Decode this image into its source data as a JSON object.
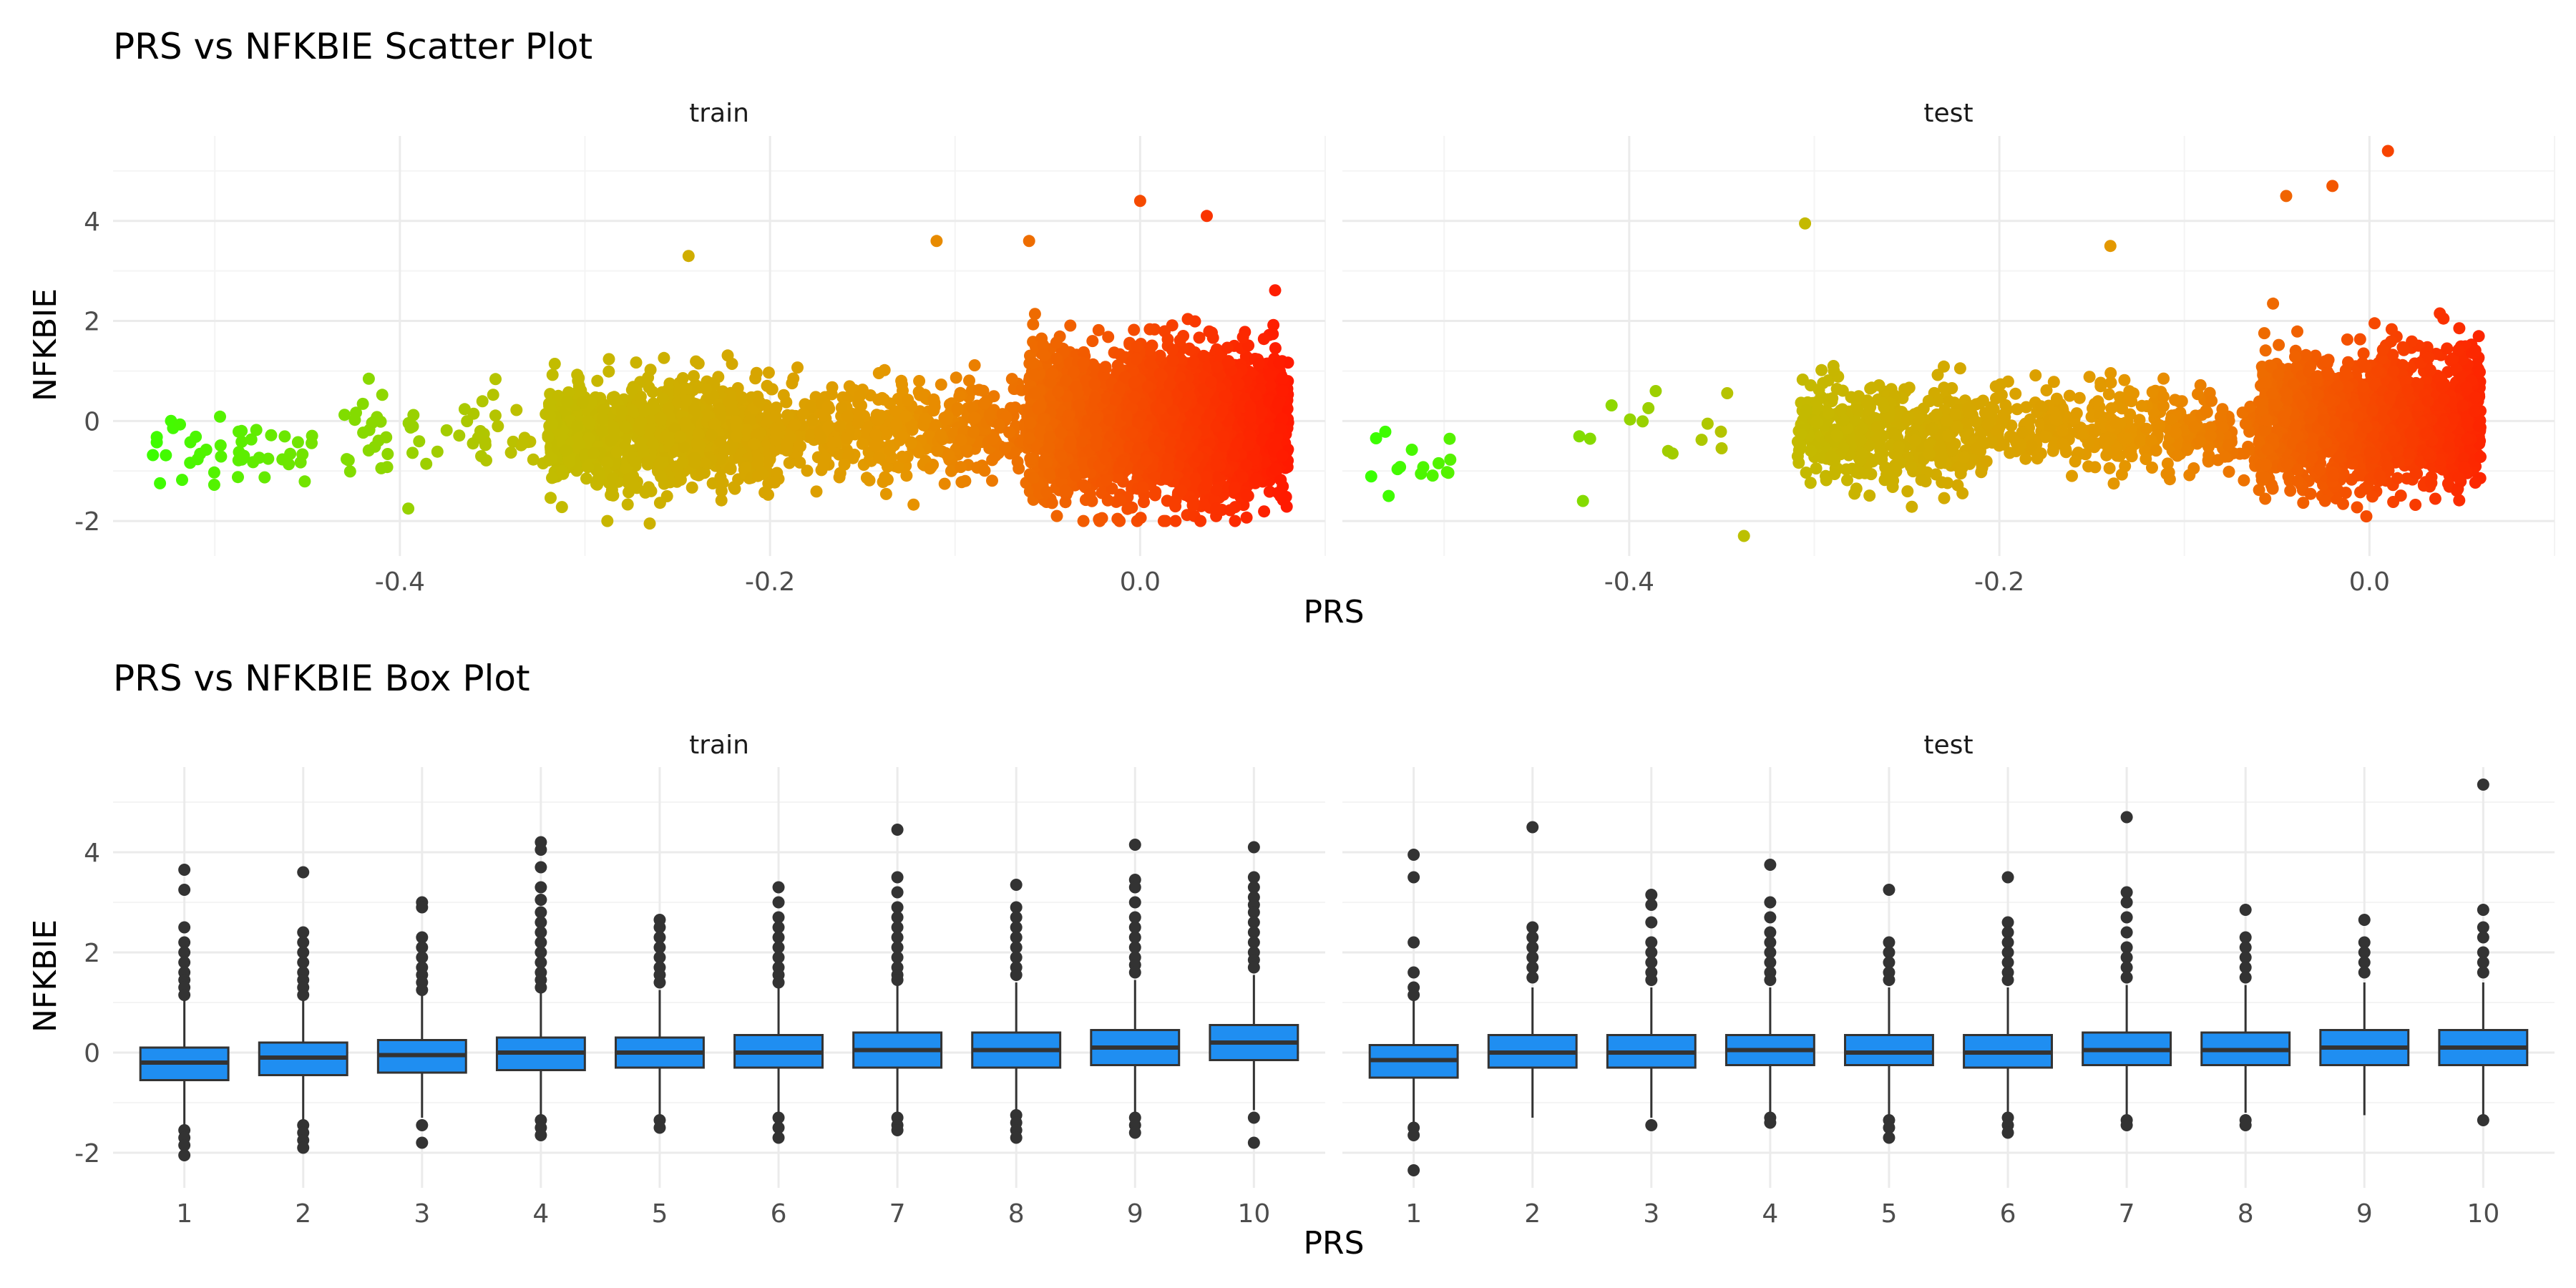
{
  "chart_data": [
    {
      "type": "scatter",
      "title": "PRS vs NFKBIE Scatter Plot",
      "xlabel": "PRS",
      "ylabel": "NFKBIE",
      "facets": [
        "train",
        "test"
      ],
      "xlim": [
        -0.555,
        0.1
      ],
      "ylim": [
        -2.7,
        5.7
      ],
      "x_ticks": [
        -0.4,
        -0.2,
        0.0
      ],
      "x_tick_labels": [
        "-0.4",
        "-0.2",
        "0.0"
      ],
      "y_ticks": [
        -2,
        0,
        2,
        4
      ],
      "y_tick_labels": [
        "-2",
        "0",
        "2",
        "4"
      ],
      "grid": true,
      "color_gradient": [
        "#39ff00",
        "#bfbf00",
        "#e69500",
        "#ff1a00"
      ],
      "clusters": {
        "train": [
          {
            "x_range": [
              -0.535,
              -0.445
            ],
            "y_mean": -0.5,
            "y_sd": 0.35,
            "n": 45
          },
          {
            "x_range": [
              -0.43,
              -0.32
            ],
            "y_mean": -0.3,
            "y_sd": 0.45,
            "n": 60
          },
          {
            "x_range": [
              -0.32,
              -0.2
            ],
            "y_mean": -0.25,
            "y_sd": 0.55,
            "n": 900
          },
          {
            "x_range": [
              -0.2,
              -0.06
            ],
            "y_mean": -0.2,
            "y_sd": 0.45,
            "n": 500
          },
          {
            "x_range": [
              -0.06,
              0.08
            ],
            "y_mean": 0.0,
            "y_sd": 0.7,
            "n": 2800
          }
        ],
        "test": [
          {
            "x_range": [
              -0.54,
              -0.49
            ],
            "y_mean": -0.7,
            "y_sd": 0.4,
            "n": 14
          },
          {
            "x_range": [
              -0.43,
              -0.32
            ],
            "y_mean": -0.3,
            "y_sd": 0.4,
            "n": 14
          },
          {
            "x_range": [
              -0.31,
              -0.2
            ],
            "y_mean": -0.25,
            "y_sd": 0.5,
            "n": 500
          },
          {
            "x_range": [
              -0.2,
              -0.06
            ],
            "y_mean": -0.15,
            "y_sd": 0.4,
            "n": 350
          },
          {
            "x_range": [
              -0.06,
              0.06
            ],
            "y_mean": 0.0,
            "y_sd": 0.65,
            "n": 1600
          }
        ]
      },
      "notable_points": {
        "train": [
          [
            0.0,
            4.4
          ],
          [
            0.036,
            4.1
          ],
          [
            -0.11,
            3.6
          ],
          [
            -0.244,
            3.3
          ],
          [
            -0.06,
            3.6
          ],
          [
            -0.265,
            -2.05
          ],
          [
            -0.045,
            -1.9
          ],
          [
            0.077,
            0.85
          ]
        ],
        "test": [
          [
            0.01,
            5.4
          ],
          [
            -0.02,
            4.7
          ],
          [
            -0.045,
            4.5
          ],
          [
            -0.305,
            3.95
          ],
          [
            -0.14,
            3.5
          ],
          [
            -0.338,
            -2.3
          ],
          [
            -0.425,
            -1.6
          ],
          [
            -0.53,
            -1.5
          ]
        ]
      }
    },
    {
      "type": "box",
      "title": "PRS vs NFKBIE Box Plot",
      "xlabel": "PRS",
      "ylabel": "NFKBIE",
      "facets": [
        "train",
        "test"
      ],
      "categories": [
        "1",
        "2",
        "3",
        "4",
        "5",
        "6",
        "7",
        "8",
        "9",
        "10"
      ],
      "ylim": [
        -2.7,
        5.7
      ],
      "y_ticks": [
        -2,
        0,
        2,
        4
      ],
      "y_tick_labels": [
        "-2",
        "0",
        "2",
        "4"
      ],
      "box_color": "#1f8ef1",
      "boxes": {
        "train": [
          {
            "q1": -0.55,
            "median": -0.2,
            "q3": 0.1,
            "lo": -1.45,
            "hi": 1.05,
            "outliers": [
              3.65,
              3.25,
              2.5,
              2.2,
              2.0,
              1.8,
              1.6,
              1.45,
              1.3,
              1.15,
              -1.55,
              -1.7,
              -1.85,
              -2.05
            ]
          },
          {
            "q1": -0.45,
            "median": -0.1,
            "q3": 0.2,
            "lo": -1.35,
            "hi": 1.1,
            "outliers": [
              3.6,
              2.4,
              2.2,
              2.0,
              1.8,
              1.6,
              1.45,
              1.3,
              1.15,
              -1.45,
              -1.6,
              -1.75,
              -1.9
            ]
          },
          {
            "q1": -0.4,
            "median": -0.05,
            "q3": 0.25,
            "lo": -1.3,
            "hi": 1.2,
            "outliers": [
              3.0,
              2.9,
              2.3,
              2.1,
              1.9,
              1.7,
              1.55,
              1.4,
              1.25,
              -1.45,
              -1.8
            ]
          },
          {
            "q1": -0.35,
            "median": 0.0,
            "q3": 0.3,
            "lo": -1.3,
            "hi": 1.25,
            "outliers": [
              4.2,
              4.05,
              3.7,
              3.3,
              3.05,
              2.8,
              2.6,
              2.4,
              2.2,
              2.0,
              1.8,
              1.6,
              1.45,
              1.3,
              -1.35,
              -1.5,
              -1.65
            ]
          },
          {
            "q1": -0.3,
            "median": 0.0,
            "q3": 0.3,
            "lo": -1.25,
            "hi": 1.25,
            "outliers": [
              2.65,
              2.5,
              2.3,
              2.1,
              1.9,
              1.7,
              1.55,
              1.4,
              -1.35,
              -1.5
            ]
          },
          {
            "q1": -0.3,
            "median": 0.0,
            "q3": 0.35,
            "lo": -1.25,
            "hi": 1.3,
            "outliers": [
              3.3,
              3.0,
              2.7,
              2.5,
              2.3,
              2.1,
              1.9,
              1.7,
              1.55,
              1.4,
              -1.3,
              -1.5,
              -1.7
            ]
          },
          {
            "q1": -0.3,
            "median": 0.05,
            "q3": 0.4,
            "lo": -1.25,
            "hi": 1.35,
            "outliers": [
              4.45,
              3.5,
              3.2,
              2.9,
              2.7,
              2.5,
              2.3,
              2.1,
              1.9,
              1.7,
              1.55,
              1.45,
              -1.3,
              -1.45,
              -1.55
            ]
          },
          {
            "q1": -0.3,
            "median": 0.05,
            "q3": 0.4,
            "lo": -1.2,
            "hi": 1.4,
            "outliers": [
              3.35,
              2.9,
              2.7,
              2.5,
              2.3,
              2.1,
              1.9,
              1.7,
              1.55,
              -1.25,
              -1.4,
              -1.55,
              -1.7
            ]
          },
          {
            "q1": -0.25,
            "median": 0.1,
            "q3": 0.45,
            "lo": -1.2,
            "hi": 1.45,
            "outliers": [
              4.15,
              3.45,
              3.3,
              3.0,
              2.7,
              2.5,
              2.3,
              2.1,
              1.9,
              1.75,
              1.6,
              -1.3,
              -1.45,
              -1.6
            ]
          },
          {
            "q1": -0.15,
            "median": 0.2,
            "q3": 0.55,
            "lo": -1.15,
            "hi": 1.55,
            "outliers": [
              4.1,
              3.5,
              3.3,
              3.1,
              2.95,
              2.8,
              2.6,
              2.4,
              2.2,
              2.0,
              1.85,
              1.7,
              -1.3,
              -1.8
            ]
          }
        ],
        "test": [
          {
            "q1": -0.5,
            "median": -0.15,
            "q3": 0.15,
            "lo": -1.4,
            "hi": 1.05,
            "outliers": [
              3.95,
              3.5,
              2.2,
              1.6,
              1.3,
              1.15,
              -1.5,
              -1.65,
              -2.35
            ]
          },
          {
            "q1": -0.3,
            "median": 0.0,
            "q3": 0.35,
            "lo": -1.3,
            "hi": 1.3,
            "outliers": [
              4.5,
              2.5,
              2.3,
              2.1,
              1.9,
              1.7,
              1.5
            ]
          },
          {
            "q1": -0.3,
            "median": 0.0,
            "q3": 0.35,
            "lo": -1.3,
            "hi": 1.3,
            "outliers": [
              3.15,
              2.95,
              2.6,
              2.2,
              2.0,
              1.8,
              1.6,
              1.45,
              -1.45
            ]
          },
          {
            "q1": -0.25,
            "median": 0.05,
            "q3": 0.35,
            "lo": -1.2,
            "hi": 1.3,
            "outliers": [
              3.75,
              3.0,
              2.7,
              2.4,
              2.2,
              2.0,
              1.8,
              1.6,
              1.45,
              -1.3,
              -1.4
            ]
          },
          {
            "q1": -0.25,
            "median": 0.0,
            "q3": 0.35,
            "lo": -1.25,
            "hi": 1.3,
            "outliers": [
              3.25,
              2.2,
              2.0,
              1.8,
              1.6,
              1.45,
              -1.35,
              -1.5,
              -1.7
            ]
          },
          {
            "q1": -0.3,
            "median": 0.0,
            "q3": 0.35,
            "lo": -1.25,
            "hi": 1.3,
            "outliers": [
              3.5,
              2.6,
              2.4,
              2.2,
              2.0,
              1.8,
              1.6,
              1.45,
              -1.3,
              -1.45,
              -1.6
            ]
          },
          {
            "q1": -0.25,
            "median": 0.05,
            "q3": 0.4,
            "lo": -1.25,
            "hi": 1.35,
            "outliers": [
              4.7,
              3.2,
              3.0,
              2.7,
              2.4,
              2.1,
              1.9,
              1.7,
              1.5,
              -1.35,
              -1.45
            ]
          },
          {
            "q1": -0.25,
            "median": 0.05,
            "q3": 0.4,
            "lo": -1.2,
            "hi": 1.35,
            "outliers": [
              2.85,
              2.3,
              2.1,
              1.9,
              1.7,
              1.5,
              -1.35,
              -1.45
            ]
          },
          {
            "q1": -0.25,
            "median": 0.1,
            "q3": 0.45,
            "lo": -1.25,
            "hi": 1.4,
            "outliers": [
              2.65,
              2.2,
              2.0,
              1.8,
              1.6
            ]
          },
          {
            "q1": -0.25,
            "median": 0.1,
            "q3": 0.45,
            "lo": -1.3,
            "hi": 1.4,
            "outliers": [
              5.35,
              2.85,
              2.5,
              2.3,
              2.0,
              1.8,
              1.6,
              -1.35
            ]
          }
        ]
      }
    }
  ]
}
